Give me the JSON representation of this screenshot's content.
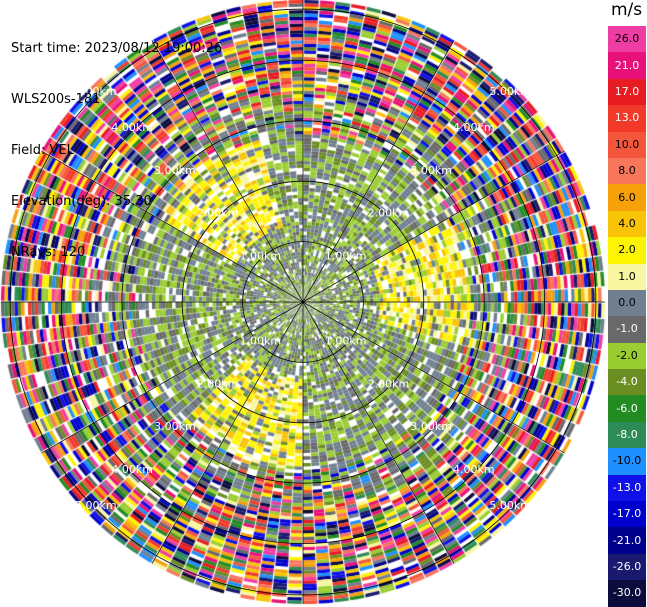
{
  "header": {
    "start_time": "Start time: 2023/08/12 19:00:26",
    "instrument": "WLS200s-181",
    "field": "Field: VEL",
    "elevation": "Elevation(deg): 35.30",
    "nrays": "NRays: 120"
  },
  "range_rings": {
    "labels": [
      "1.00km",
      "2.00km",
      "3.00km",
      "4.00km",
      "5.00km"
    ],
    "max_range_km": 5.0
  },
  "colorbar": {
    "unit": "m/s",
    "segments": [
      {
        "label": "26.0",
        "color": "#f03da4"
      },
      {
        "label": "21.0",
        "color": "#e8117a"
      },
      {
        "label": "17.0",
        "color": "#e81b23"
      },
      {
        "label": "13.0",
        "color": "#f23a2a"
      },
      {
        "label": "10.0",
        "color": "#f4563c"
      },
      {
        "label": "8.0",
        "color": "#f7765c"
      },
      {
        "label": "6.0",
        "color": "#f7a10a"
      },
      {
        "label": "4.0",
        "color": "#f9c307"
      },
      {
        "label": "2.0",
        "color": "#fdf401"
      },
      {
        "label": "1.0",
        "color": "#f8f6a0"
      },
      {
        "label": "0.0",
        "color": "#708090"
      },
      {
        "label": "-1.0",
        "color": "#696969"
      },
      {
        "label": "-2.0",
        "color": "#9acd32"
      },
      {
        "label": "-4.0",
        "color": "#6b8e23"
      },
      {
        "label": "-6.0",
        "color": "#228b22"
      },
      {
        "label": "-8.0",
        "color": "#2e8b57"
      },
      {
        "label": "-10.0",
        "color": "#1e90ff"
      },
      {
        "label": "-13.0",
        "color": "#1010e8"
      },
      {
        "label": "-17.0",
        "color": "#0000cd"
      },
      {
        "label": "-21.0",
        "color": "#00008b"
      },
      {
        "label": "-26.0",
        "color": "#191970"
      },
      {
        "label": "-30.0",
        "color": "#0b0b3c"
      }
    ]
  }
}
